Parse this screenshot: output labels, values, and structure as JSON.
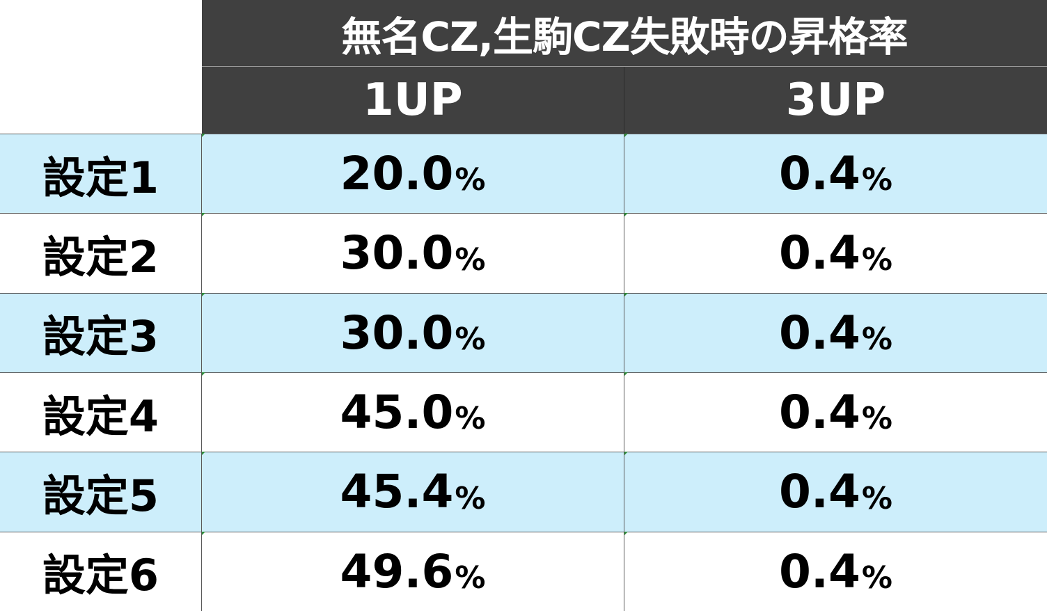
{
  "table": {
    "title": "無名CZ,生駒CZ失敗時の昇格率",
    "columns": [
      "1UP",
      "3UP"
    ],
    "unit": "%",
    "rows": [
      {
        "label": "設定1",
        "up1": "20.0",
        "up3": "0.4",
        "shade": "blue"
      },
      {
        "label": "設定2",
        "up1": "30.0",
        "up3": "0.4",
        "shade": "white"
      },
      {
        "label": "設定3",
        "up1": "30.0",
        "up3": "0.4",
        "shade": "blue"
      },
      {
        "label": "設定4",
        "up1": "45.0",
        "up3": "0.4",
        "shade": "white"
      },
      {
        "label": "設定5",
        "up1": "45.4",
        "up3": "0.4",
        "shade": "blue"
      },
      {
        "label": "設定6",
        "up1": "49.6",
        "up3": "0.4",
        "shade": "white"
      }
    ]
  },
  "colors": {
    "header_bg": "#404040",
    "header_text": "#ffffff",
    "row_blue": "#cdeefb",
    "row_white": "#ffffff",
    "text": "#000000"
  }
}
